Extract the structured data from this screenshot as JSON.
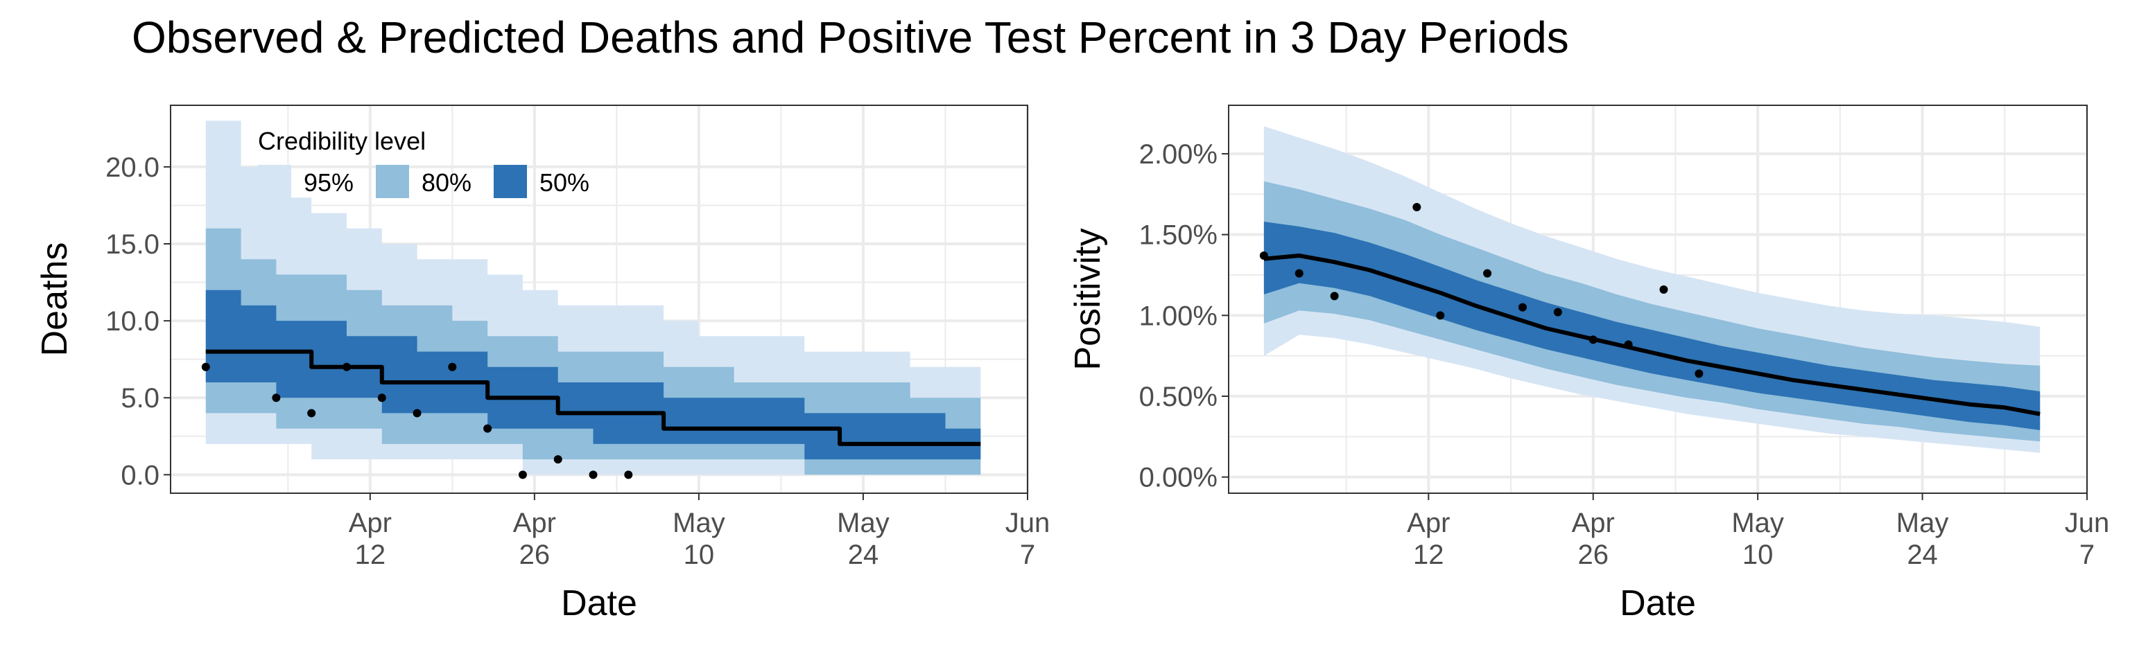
{
  "title": "Observed & Predicted Deaths and Positive Test Percent in 3 Day Periods",
  "colors": {
    "ci95": "#d6e5f4",
    "ci80": "#90bedb",
    "ci50": "#2c72b4",
    "median": "#000000",
    "points": "#000000",
    "grid": "#ebebeb",
    "frame": "#333333"
  },
  "legend": {
    "title": "Credibility level",
    "items": [
      {
        "label": "95%",
        "color": "#d6e5f4"
      },
      {
        "label": "80%",
        "color": "#90bedb"
      },
      {
        "label": "50%",
        "color": "#2c72b4"
      }
    ]
  },
  "chart_data": [
    {
      "type": "area",
      "xlabel": "Date",
      "ylabel": "Deaths",
      "x_date_range": [
        "2020-03-26",
        "2020-06-07"
      ],
      "ylim": [
        -1.2,
        24
      ],
      "y_ticks": [
        {
          "value": 0,
          "label": "0.0"
        },
        {
          "value": 5,
          "label": "5.0"
        },
        {
          "value": 10,
          "label": "10.0"
        },
        {
          "value": 15,
          "label": "15.0"
        },
        {
          "value": 20,
          "label": "20.0"
        }
      ],
      "x_ticks": [
        {
          "date": "2020-04-12",
          "month": "Apr",
          "day": "12"
        },
        {
          "date": "2020-04-26",
          "month": "Apr",
          "day": "26"
        },
        {
          "date": "2020-05-10",
          "month": "May",
          "day": "10"
        },
        {
          "date": "2020-05-24",
          "month": "May",
          "day": "24"
        },
        {
          "date": "2020-06-07",
          "month": "Jun",
          "day": "7"
        }
      ],
      "step": true,
      "grid": true,
      "legend_position": "top-left inside",
      "band_dates": [
        "2020-03-29",
        "2020-04-01",
        "2020-04-04",
        "2020-04-07",
        "2020-04-10",
        "2020-04-13",
        "2020-04-16",
        "2020-04-19",
        "2020-04-22",
        "2020-04-25",
        "2020-04-28",
        "2020-05-01",
        "2020-05-04",
        "2020-05-07",
        "2020-05-10",
        "2020-05-13",
        "2020-05-16",
        "2020-05-19",
        "2020-05-22",
        "2020-05-25",
        "2020-05-28",
        "2020-05-31",
        "2020-06-03"
      ],
      "median": [
        8,
        8,
        8,
        7,
        7,
        6,
        6,
        6,
        5,
        5,
        4,
        4,
        4,
        3,
        3,
        3,
        3,
        3,
        2,
        2,
        2,
        2,
        2
      ],
      "lo50": [
        6,
        6,
        5,
        5,
        5,
        4,
        4,
        4,
        3,
        3,
        3,
        2,
        2,
        2,
        2,
        2,
        2,
        1,
        1,
        1,
        1,
        1,
        1
      ],
      "hi50": [
        12,
        11,
        10,
        10,
        9,
        9,
        8,
        8,
        7,
        7,
        6,
        6,
        6,
        5,
        5,
        5,
        5,
        4,
        4,
        4,
        4,
        3,
        3
      ],
      "lo80": [
        4,
        4,
        3,
        3,
        3,
        2,
        2,
        2,
        2,
        1,
        1,
        1,
        1,
        1,
        1,
        1,
        1,
        0,
        0,
        0,
        0,
        0,
        0
      ],
      "hi80": [
        16,
        14,
        13,
        13,
        12,
        11,
        11,
        10,
        9,
        9,
        8,
        8,
        8,
        7,
        7,
        6,
        6,
        6,
        6,
        6,
        5,
        5,
        5
      ],
      "lo95": [
        2,
        2,
        2,
        1,
        1,
        1,
        1,
        1,
        1,
        0,
        0,
        0,
        0,
        0,
        0,
        0,
        0,
        0,
        0,
        0,
        0,
        0,
        0
      ],
      "hi95": [
        23,
        20,
        18,
        17,
        16,
        15,
        14,
        14,
        13,
        12,
        11,
        11,
        11,
        10,
        9,
        9,
        9,
        8,
        8,
        8,
        7,
        7,
        7
      ],
      "observed": [
        {
          "date": "2020-03-29",
          "value": 7
        },
        {
          "date": "2020-04-04",
          "value": 5
        },
        {
          "date": "2020-04-07",
          "value": 4
        },
        {
          "date": "2020-04-10",
          "value": 7
        },
        {
          "date": "2020-04-13",
          "value": 5
        },
        {
          "date": "2020-04-16",
          "value": 4
        },
        {
          "date": "2020-04-19",
          "value": 7
        },
        {
          "date": "2020-04-22",
          "value": 3
        },
        {
          "date": "2020-04-25",
          "value": 0
        },
        {
          "date": "2020-04-28",
          "value": 1
        },
        {
          "date": "2020-05-01",
          "value": 0
        },
        {
          "date": "2020-05-04",
          "value": 0
        }
      ]
    },
    {
      "type": "area",
      "xlabel": "Date",
      "ylabel": "Positivity",
      "x_date_range": [
        "2020-03-26",
        "2020-06-07"
      ],
      "ylim": [
        -0.1,
        2.3
      ],
      "y_ticks": [
        {
          "value": 0,
          "label": "0.00%"
        },
        {
          "value": 0.5,
          "label": "0.50%"
        },
        {
          "value": 1.0,
          "label": "1.00%"
        },
        {
          "value": 1.5,
          "label": "1.50%"
        },
        {
          "value": 2.0,
          "label": "2.00%"
        }
      ],
      "x_ticks": [
        {
          "date": "2020-04-12",
          "month": "Apr",
          "day": "12"
        },
        {
          "date": "2020-04-26",
          "month": "Apr",
          "day": "26"
        },
        {
          "date": "2020-05-10",
          "month": "May",
          "day": "10"
        },
        {
          "date": "2020-05-24",
          "month": "May",
          "day": "24"
        },
        {
          "date": "2020-06-07",
          "month": "Jun",
          "day": "7"
        }
      ],
      "step": false,
      "grid": true,
      "band_dates": [
        "2020-03-29",
        "2020-04-01",
        "2020-04-04",
        "2020-04-07",
        "2020-04-10",
        "2020-04-13",
        "2020-04-16",
        "2020-04-19",
        "2020-04-22",
        "2020-04-25",
        "2020-04-28",
        "2020-05-01",
        "2020-05-04",
        "2020-05-07",
        "2020-05-10",
        "2020-05-13",
        "2020-05-16",
        "2020-05-19",
        "2020-05-22",
        "2020-05-25",
        "2020-05-28",
        "2020-05-31",
        "2020-06-03"
      ],
      "median": [
        1.35,
        1.37,
        1.33,
        1.28,
        1.21,
        1.14,
        1.06,
        0.99,
        0.92,
        0.87,
        0.82,
        0.77,
        0.72,
        0.68,
        0.64,
        0.6,
        0.57,
        0.54,
        0.51,
        0.48,
        0.45,
        0.43,
        0.39
      ],
      "lo50": [
        1.13,
        1.2,
        1.17,
        1.12,
        1.05,
        0.98,
        0.91,
        0.85,
        0.79,
        0.74,
        0.69,
        0.64,
        0.6,
        0.56,
        0.52,
        0.49,
        0.46,
        0.43,
        0.4,
        0.37,
        0.34,
        0.32,
        0.29
      ],
      "hi50": [
        1.58,
        1.55,
        1.51,
        1.45,
        1.38,
        1.3,
        1.22,
        1.15,
        1.08,
        1.02,
        0.96,
        0.91,
        0.86,
        0.81,
        0.77,
        0.73,
        0.69,
        0.66,
        0.63,
        0.6,
        0.58,
        0.56,
        0.53
      ],
      "lo80": [
        0.95,
        1.03,
        1.01,
        0.97,
        0.91,
        0.85,
        0.79,
        0.73,
        0.67,
        0.62,
        0.57,
        0.53,
        0.49,
        0.46,
        0.42,
        0.39,
        0.36,
        0.33,
        0.31,
        0.28,
        0.26,
        0.24,
        0.22
      ],
      "hi80": [
        1.83,
        1.78,
        1.72,
        1.66,
        1.59,
        1.5,
        1.42,
        1.34,
        1.26,
        1.2,
        1.13,
        1.07,
        1.02,
        0.97,
        0.92,
        0.88,
        0.84,
        0.8,
        0.77,
        0.74,
        0.72,
        0.7,
        0.69
      ],
      "lo95": [
        0.75,
        0.88,
        0.86,
        0.82,
        0.77,
        0.72,
        0.67,
        0.61,
        0.56,
        0.51,
        0.47,
        0.43,
        0.39,
        0.36,
        0.33,
        0.3,
        0.27,
        0.25,
        0.23,
        0.21,
        0.19,
        0.17,
        0.15
      ],
      "hi95": [
        2.17,
        2.1,
        2.03,
        1.95,
        1.86,
        1.76,
        1.66,
        1.57,
        1.49,
        1.42,
        1.35,
        1.29,
        1.24,
        1.19,
        1.14,
        1.1,
        1.06,
        1.03,
        1.01,
        1.0,
        0.98,
        0.96,
        0.93
      ],
      "observed": [
        {
          "date": "2020-03-29",
          "value": 1.37
        },
        {
          "date": "2020-04-01",
          "value": 1.26
        },
        {
          "date": "2020-04-04",
          "value": 1.12
        },
        {
          "date": "2020-04-11",
          "value": 1.67
        },
        {
          "date": "2020-04-13",
          "value": 1.0
        },
        {
          "date": "2020-04-17",
          "value": 1.26
        },
        {
          "date": "2020-04-20",
          "value": 1.05
        },
        {
          "date": "2020-04-23",
          "value": 1.02
        },
        {
          "date": "2020-04-26",
          "value": 0.85
        },
        {
          "date": "2020-04-29",
          "value": 0.82
        },
        {
          "date": "2020-05-02",
          "value": 1.16
        },
        {
          "date": "2020-05-05",
          "value": 0.64
        }
      ]
    }
  ]
}
